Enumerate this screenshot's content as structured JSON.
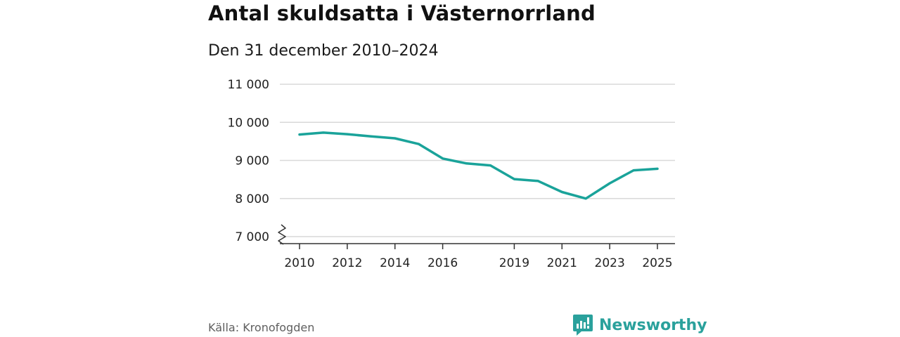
{
  "chart_data": {
    "type": "line",
    "title": "Antal skuldsatta i Västernorrland",
    "subtitle": "Den 31 december 2010–2024",
    "xlabel": "",
    "ylabel": "",
    "x": [
      2010,
      2011,
      2012,
      2013,
      2014,
      2015,
      2016,
      2017,
      2018,
      2019,
      2020,
      2021,
      2022,
      2023,
      2024,
      2025
    ],
    "series": [
      {
        "name": "Antal skuldsatta",
        "color": "#1aa39a",
        "values": [
          9680,
          9730,
          9690,
          9630,
          9580,
          9430,
          9050,
          8920,
          8870,
          8510,
          8460,
          8170,
          8000,
          8400,
          8740,
          8780
        ]
      }
    ],
    "ylim": [
      7000,
      11000
    ],
    "yticks": [
      {
        "value": 11000,
        "label": "11 000"
      },
      {
        "value": 10000,
        "label": "10 000"
      },
      {
        "value": 9000,
        "label": "9 000"
      },
      {
        "value": 8000,
        "label": "8 000"
      },
      {
        "value": 7000,
        "label": "7 000"
      }
    ],
    "xticks": [
      {
        "value": 2010,
        "label": "2010"
      },
      {
        "value": 2012,
        "label": "2012"
      },
      {
        "value": 2014,
        "label": "2014"
      },
      {
        "value": 2016,
        "label": "2016"
      },
      {
        "value": 2019,
        "label": "2019"
      },
      {
        "value": 2021,
        "label": "2021"
      },
      {
        "value": 2023,
        "label": "2023"
      },
      {
        "value": 2025,
        "label": "2025"
      }
    ],
    "grid": true,
    "axis_break": true
  },
  "footer": {
    "source": "Källa: Kronofogden",
    "brand": "Newsworthy",
    "brand_icon": "newsworthy-logo-icon",
    "brand_color": "#2aa19c"
  }
}
